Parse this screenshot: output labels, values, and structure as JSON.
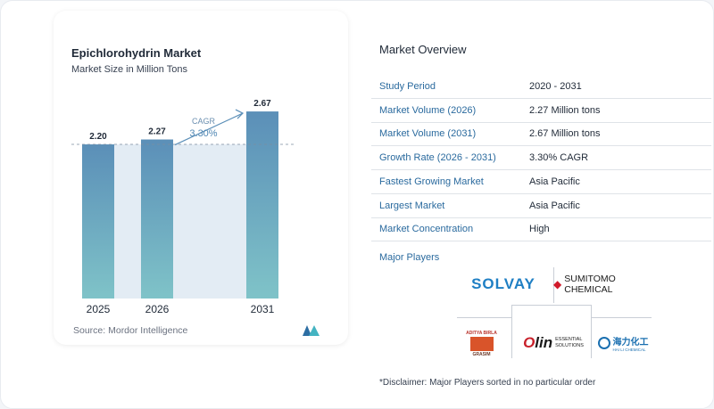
{
  "chart_data": {
    "type": "bar",
    "title": "Epichlorohydrin Market",
    "subtitle": "Market Size in Million Tons",
    "categories": [
      "2025",
      "2026",
      "2031"
    ],
    "values": [
      2.2,
      2.27,
      2.67
    ],
    "value_labels": [
      "2.20",
      "2.27",
      "2.67"
    ],
    "cagr_label": "CAGR",
    "cagr_value": "3.30%",
    "ylim": [
      0,
      2.9
    ],
    "colors": {
      "bar_top": "#5b8fb8",
      "bar_bottom": "#7fc3c8",
      "shade": "#e3ecf4",
      "arrow": "#5b8fb8"
    },
    "source": "Source:  Mordor Intelligence"
  },
  "overview": {
    "title": "Market Overview",
    "rows": [
      {
        "key": "Study Period",
        "value": "2020 - 2031"
      },
      {
        "key": "Market Volume (2026)",
        "value": "2.27 Million tons"
      },
      {
        "key": "Market Volume (2031)",
        "value": "2.67 Million tons"
      },
      {
        "key": "Growth Rate (2026 - 2031)",
        "value": "3.30% CAGR"
      },
      {
        "key": "Fastest Growing Market",
        "value": "Asia Pacific"
      },
      {
        "key": "Largest Market",
        "value": "Asia Pacific"
      },
      {
        "key": "Market Concentration",
        "value": "High"
      }
    ],
    "players_label": "Major Players",
    "players": {
      "solvay": "SOLVAY",
      "sumitomo": "SUMITOMO CHEMICAL",
      "aditya_top": "ADITYA BIRLA",
      "aditya_bottom": "GRASIM",
      "olin_o": "O",
      "olin_rest": "lin",
      "olin_sub1": "ESSENTIAL",
      "olin_sub2": "SOLUTIONS",
      "haili_cn": "海力化工",
      "haili_en": "HAI LI CHEMICAL"
    },
    "disclaimer": "*Disclaimer: Major Players sorted in no particular order"
  }
}
